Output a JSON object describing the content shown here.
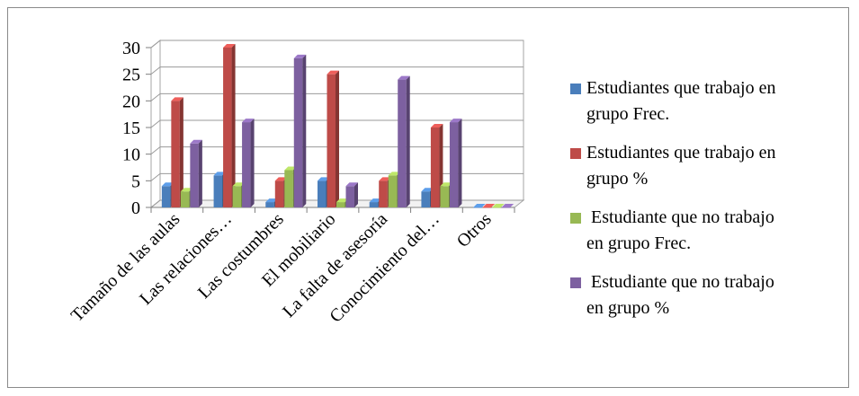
{
  "chart_data": {
    "type": "bar",
    "categories": [
      "Tamaño de las aulas",
      "Las relaciones…",
      "Las costumbres",
      "El mobiliario",
      "La falta de asesoría",
      "Conocimiento del…",
      "Otros"
    ],
    "series": [
      {
        "name": "Estudiantes que trabajo en grupo Frec.",
        "color": "#4a7ebb",
        "values": [
          4,
          6,
          1,
          5,
          1,
          3,
          0
        ]
      },
      {
        "name": "Estudiantes que trabajo en grupo %",
        "color": "#be4b48",
        "values": [
          20,
          30,
          5,
          25,
          5,
          15,
          0
        ]
      },
      {
        "name": "Estudiante que no trabajo en grupo Frec.",
        "color": "#98b954",
        "values": [
          3,
          4,
          7,
          1,
          6,
          4,
          0
        ]
      },
      {
        "name": "Estudiante que no trabajo en grupo %",
        "color": "#7d60a0",
        "values": [
          12,
          16,
          28,
          4,
          24,
          16,
          0
        ]
      }
    ],
    "yticks": [
      "0",
      "5",
      "10",
      "15",
      "20",
      "25",
      "30"
    ],
    "ylim": [
      0,
      30
    ],
    "grid": true,
    "legend_position": "right",
    "three_d": true
  },
  "legend": {
    "items": [
      {
        "line1": "Estudiantes que trabajo en",
        "line2": "grupo Frec."
      },
      {
        "line1": "Estudiantes que trabajo en",
        "line2": "grupo %"
      },
      {
        "line1": " Estudiante que no trabajo",
        "line2": "en grupo Frec."
      },
      {
        "line1": " Estudiante que no trabajo",
        "line2": "en grupo %"
      }
    ]
  }
}
